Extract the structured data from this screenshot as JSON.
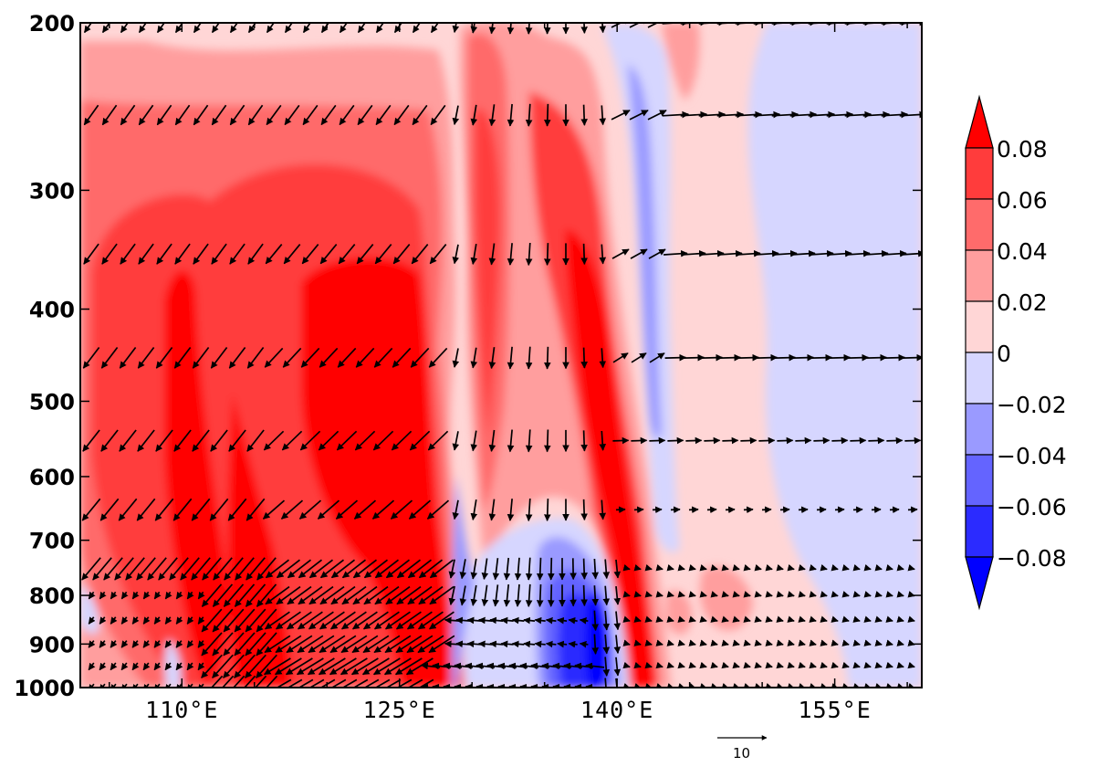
{
  "chart_data": {
    "type": "heatmap",
    "title": "",
    "xlabel": "",
    "ylabel": "",
    "x_axis": {
      "range_degE": [
        103,
        161
      ],
      "tick_values": [
        110,
        125,
        140,
        155
      ],
      "tick_labels": [
        "110°E",
        "125°E",
        "140°E",
        "155°E"
      ]
    },
    "y_axis": {
      "range_hPa": [
        200,
        1000
      ],
      "tick_values": [
        200,
        300,
        400,
        500,
        600,
        700,
        800,
        900,
        1000
      ],
      "tick_labels": [
        "200",
        "300",
        "400",
        "500",
        "600",
        "700",
        "800",
        "900",
        "1000"
      ],
      "scale": "log-pressure"
    },
    "colorbar": {
      "position": "right",
      "extend": "both",
      "levels": [
        -0.08,
        -0.06,
        -0.04,
        -0.02,
        0,
        0.02,
        0.04,
        0.06,
        0.08
      ],
      "tick_labels": [
        "0.08",
        "0.06",
        "0.04",
        "0.02",
        "0",
        "−0.02",
        "−0.04",
        "−0.06",
        "−0.08"
      ],
      "colors": [
        "#0000ff",
        "#2b2bff",
        "#6464ff",
        "#9a9aff",
        "#d6d6ff",
        "#ffd6d6",
        "#ff9e9e",
        "#ff6b6b",
        "#ff3c3c",
        "#ff0000"
      ]
    },
    "shading_regions": [
      {
        "name": "western-warm-column",
        "lon_range": [
          105,
          132
        ],
        "pressure_range": [
          200,
          1000
        ],
        "approx_value": 0.06
      },
      {
        "name": "core-maximum",
        "lon_range": [
          121,
          128
        ],
        "pressure_range": [
          360,
          720
        ],
        "approx_value": 0.08
      },
      {
        "name": "second-warm-column",
        "lon_range": [
          133,
          141
        ],
        "pressure_range": [
          220,
          1000
        ],
        "approx_value": 0.06
      },
      {
        "name": "negative-band-140E",
        "lon_range": [
          140,
          143
        ],
        "pressure_range": [
          200,
          620
        ],
        "approx_value": -0.03
      },
      {
        "name": "negative-lower-core",
        "lon_range": [
          134,
          140
        ],
        "pressure_range": [
          700,
          1000
        ],
        "approx_value": -0.07
      },
      {
        "name": "eastern-negative",
        "lon_range": [
          150,
          161
        ],
        "pressure_range": [
          200,
          1000
        ],
        "approx_value": -0.01
      }
    ],
    "vector_rows_hPa": [
      200,
      250,
      350,
      450,
      550,
      650,
      750,
      800,
      850,
      900,
      950,
      1000
    ],
    "vector_reference": {
      "magnitude": 10,
      "label": "10"
    }
  }
}
